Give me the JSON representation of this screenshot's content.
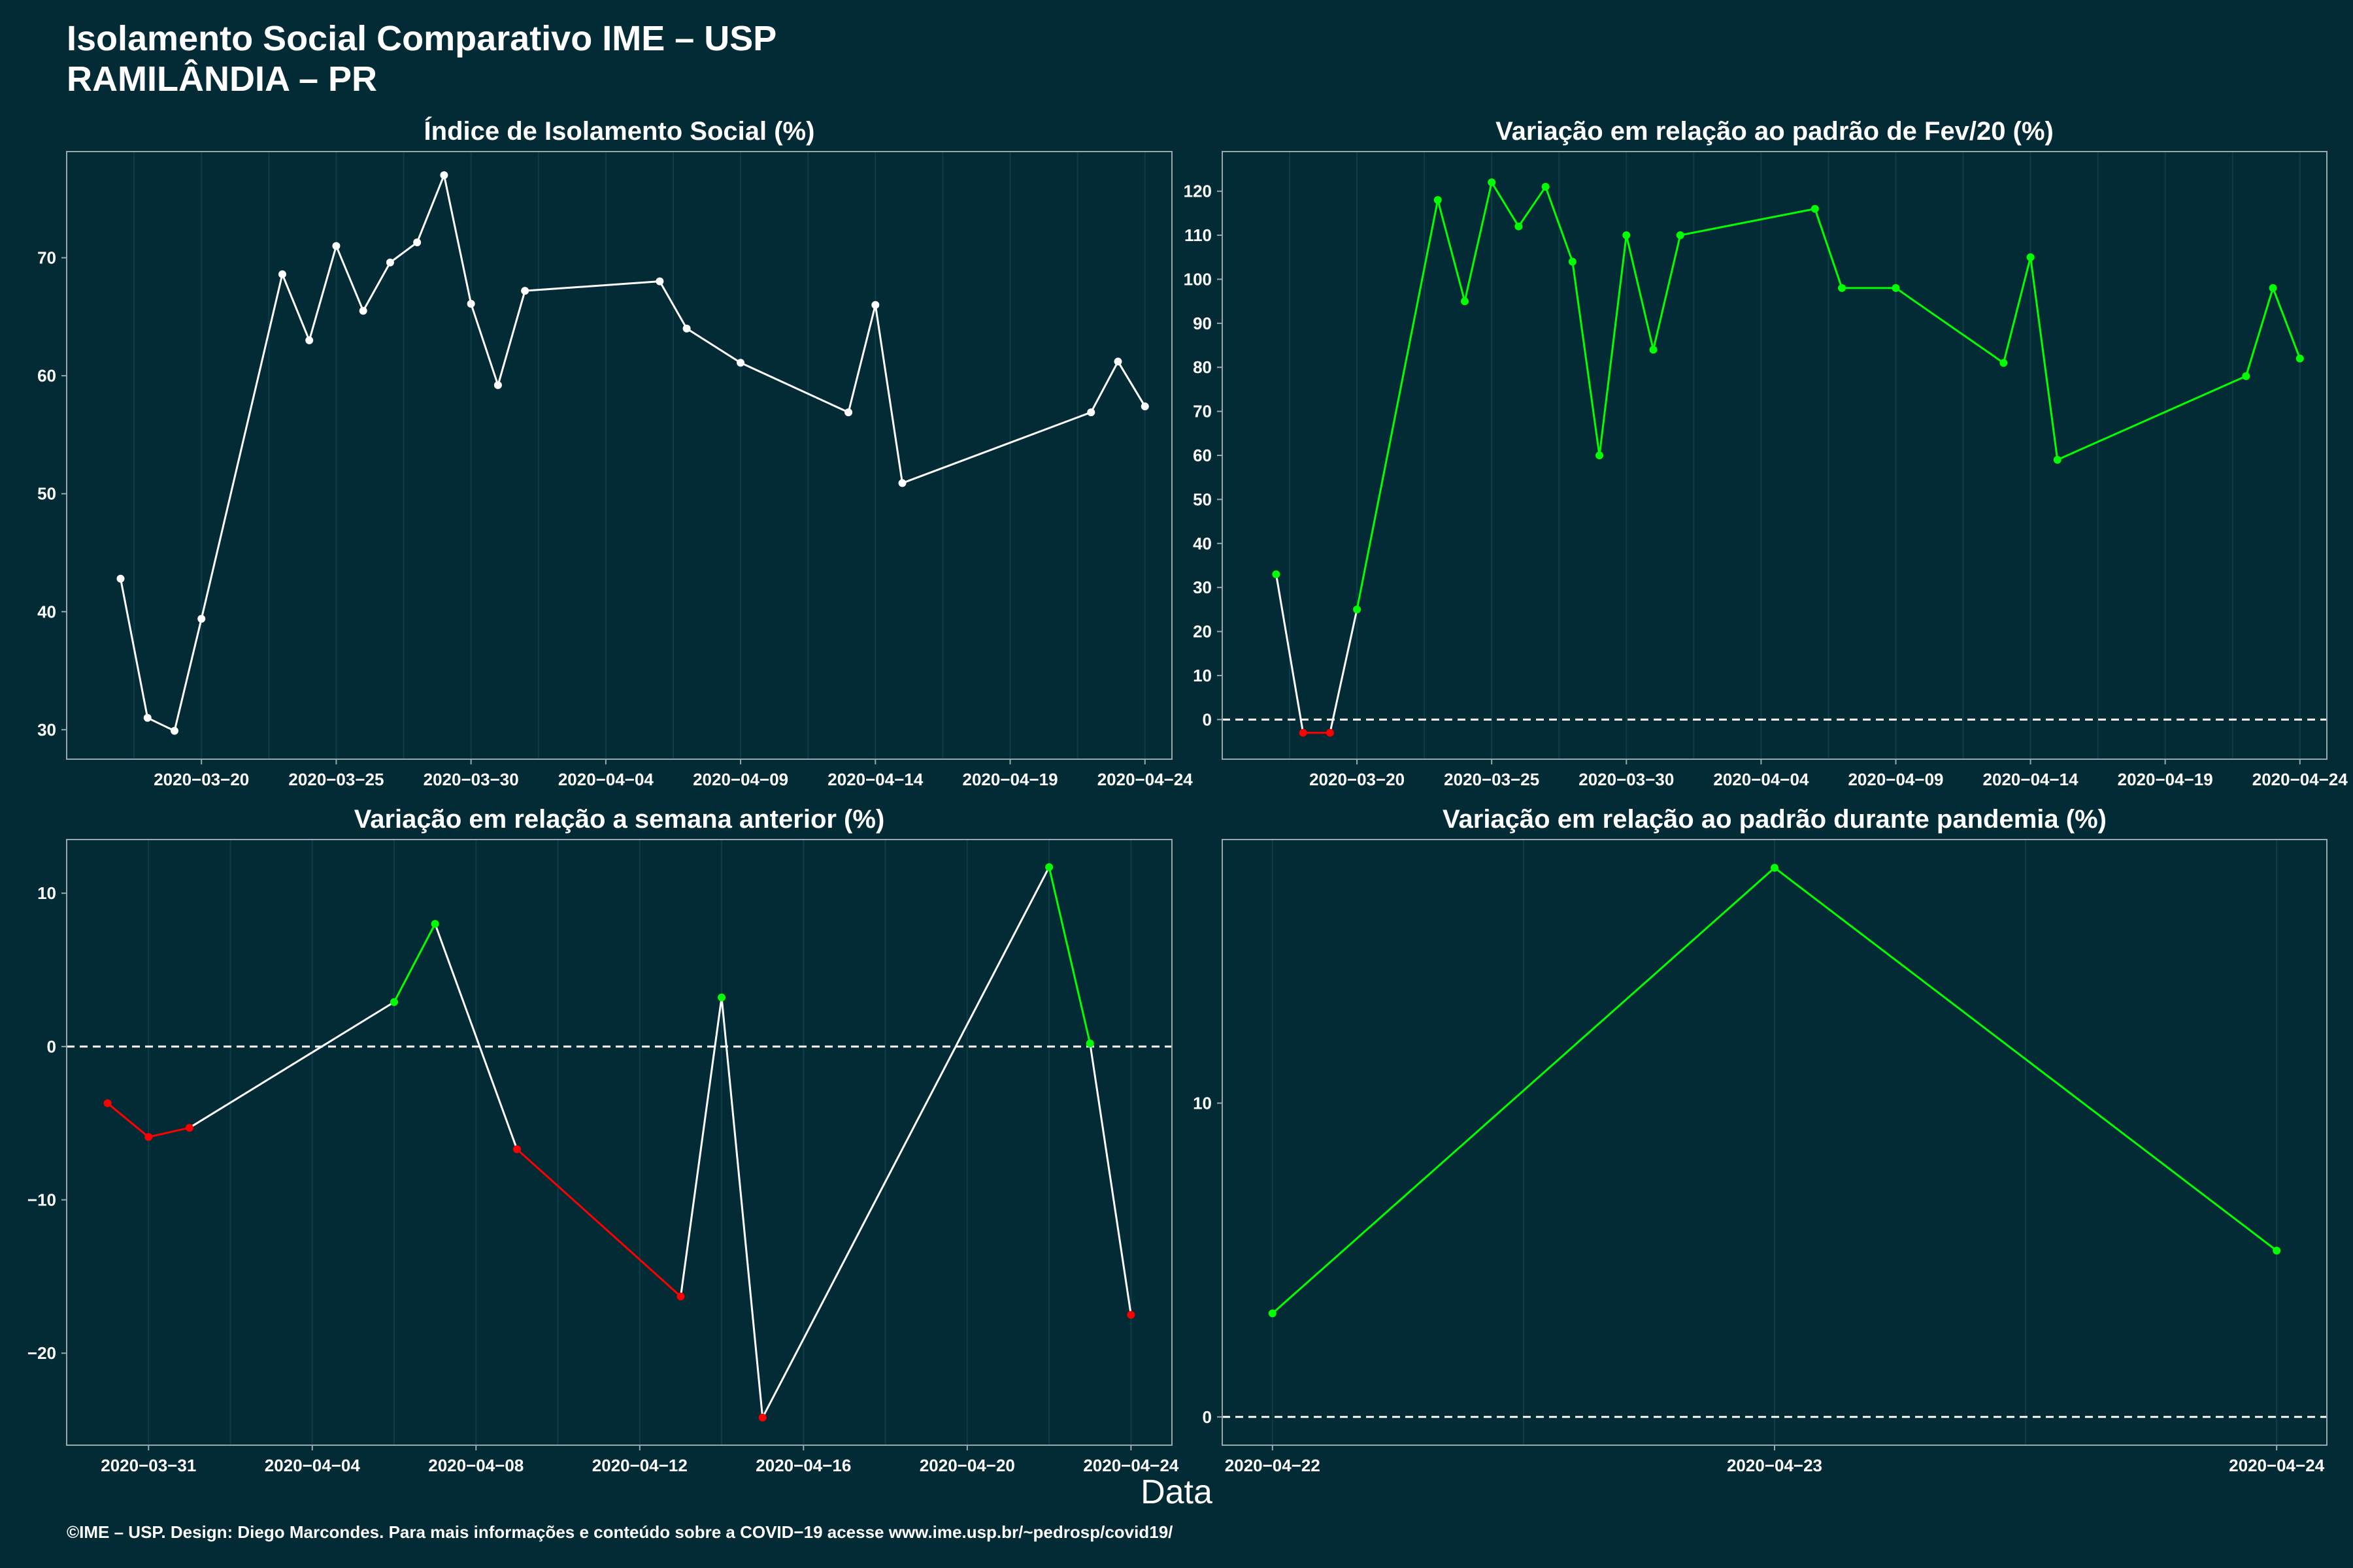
{
  "title_line1": "Isolamento Social Comparativo IME – USP",
  "title_line2": "RAMILÂNDIA – PR",
  "xlabel": "Data",
  "footer": "©IME – USP. Design: Diego Marcondes. Para mais informações e conteúdo sobre a COVID−19 acesse www.ime.usp.br/~pedrosp/covid19/",
  "colors": {
    "background": "#022b36",
    "line": "#ffffff",
    "positive": "#00ff00",
    "negative": "#ff0000",
    "grid": "#0e3d47",
    "axis": "#9aa8ad"
  },
  "chart_data": [
    {
      "type": "line",
      "title": "Índice de Isolamento Social (%)",
      "x_type": "date",
      "xlim": [
        "2020-03-15",
        "2020-04-25"
      ],
      "xticks": [
        "2020-03-20",
        "2020-03-25",
        "2020-03-30",
        "2020-04-04",
        "2020-04-09",
        "2020-04-14",
        "2020-04-19",
        "2020-04-24"
      ],
      "ylim": [
        27.5,
        79
      ],
      "yticks": [
        30,
        40,
        50,
        60,
        70
      ],
      "colored_segments": false,
      "zero_line": false,
      "x": [
        "2020-03-17",
        "2020-03-18",
        "2020-03-19",
        "2020-03-20",
        "2020-03-23",
        "2020-03-24",
        "2020-03-25",
        "2020-03-26",
        "2020-03-27",
        "2020-03-28",
        "2020-03-29",
        "2020-03-30",
        "2020-03-31",
        "2020-04-01",
        "2020-04-06",
        "2020-04-07",
        "2020-04-09",
        "2020-04-13",
        "2020-04-14",
        "2020-04-15",
        "2020-04-22",
        "2020-04-23",
        "2020-04-24"
      ],
      "y": [
        42.8,
        31.0,
        29.9,
        39.4,
        68.6,
        63.0,
        71.0,
        65.5,
        69.6,
        71.3,
        77.0,
        66.1,
        59.2,
        67.2,
        68.0,
        64.0,
        61.1,
        56.9,
        66.0,
        50.9,
        56.9,
        61.2,
        57.4
      ]
    },
    {
      "type": "line",
      "title": "Variação em relação ao padrão de Fev/20 (%)",
      "x_type": "date",
      "xlim": [
        "2020-03-15",
        "2020-04-25"
      ],
      "xticks": [
        "2020-03-20",
        "2020-03-25",
        "2020-03-30",
        "2020-04-04",
        "2020-04-09",
        "2020-04-14",
        "2020-04-19",
        "2020-04-24"
      ],
      "ylim": [
        -9,
        129
      ],
      "yticks": [
        0,
        10,
        20,
        30,
        40,
        50,
        60,
        70,
        80,
        90,
        100,
        110,
        120
      ],
      "colored_segments": true,
      "zero_line": true,
      "x": [
        "2020-03-17",
        "2020-03-18",
        "2020-03-19",
        "2020-03-20",
        "2020-03-23",
        "2020-03-24",
        "2020-03-25",
        "2020-03-26",
        "2020-03-27",
        "2020-03-28",
        "2020-03-29",
        "2020-03-30",
        "2020-03-31",
        "2020-04-01",
        "2020-04-06",
        "2020-04-07",
        "2020-04-09",
        "2020-04-13",
        "2020-04-14",
        "2020-04-15",
        "2020-04-22",
        "2020-04-23",
        "2020-04-24"
      ],
      "y": [
        33,
        -3,
        -3,
        25,
        118,
        95,
        122,
        112,
        121,
        104,
        60,
        110,
        84,
        110,
        116,
        98,
        98,
        81,
        105,
        59,
        78,
        98,
        82
      ]
    },
    {
      "type": "line",
      "title": "Variação em relação a semana anterior (%)",
      "x_type": "date",
      "xlim": [
        "2020-03-29",
        "2020-04-25"
      ],
      "xticks": [
        "2020-03-31",
        "2020-04-04",
        "2020-04-08",
        "2020-04-12",
        "2020-04-16",
        "2020-04-20",
        "2020-04-24"
      ],
      "ylim": [
        -26,
        13.5
      ],
      "yticks": [
        -20,
        -10,
        0,
        10
      ],
      "colored_segments": true,
      "zero_line": true,
      "x": [
        "2020-03-30",
        "2020-03-31",
        "2020-04-01",
        "2020-04-06",
        "2020-04-07",
        "2020-04-09",
        "2020-04-13",
        "2020-04-14",
        "2020-04-15",
        "2020-04-22",
        "2020-04-23",
        "2020-04-24"
      ],
      "y": [
        -3.7,
        -5.9,
        -5.3,
        2.9,
        8.0,
        -6.7,
        -16.3,
        3.2,
        -24.2,
        11.7,
        0.2,
        -17.5
      ]
    },
    {
      "type": "line",
      "title": "Variação em relação ao padrão durante pandemia (%)",
      "x_type": "date",
      "xlim": [
        "2020-04-21.9",
        "2020-04-24.1"
      ],
      "xticks": [
        "2020-04-22",
        "2020-04-23",
        "2020-04-24"
      ],
      "ylim": [
        -0.9,
        18.4
      ],
      "yticks": [
        0,
        10
      ],
      "colored_segments": true,
      "zero_line": true,
      "x": [
        "2020-04-22",
        "2020-04-23",
        "2020-04-24"
      ],
      "y": [
        3.3,
        17.5,
        5.3
      ]
    }
  ]
}
